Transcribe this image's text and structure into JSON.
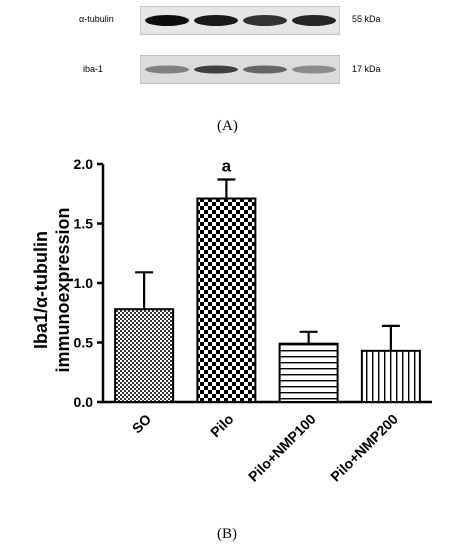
{
  "blot": {
    "rows": [
      {
        "protein": "α-tubulin",
        "size": "55 kDa",
        "intensities": [
          0.95,
          0.9,
          0.8,
          0.85
        ]
      },
      {
        "protein": "iba-1",
        "size": "17 kDa",
        "intensities": [
          0.5,
          0.75,
          0.6,
          0.45
        ]
      }
    ],
    "panel_label": "(A)"
  },
  "chart_data": {
    "type": "bar",
    "categories": [
      "SO",
      "Pilo",
      "Pilo+NMP100",
      "Pilo+NMP200"
    ],
    "values": [
      0.78,
      1.71,
      0.49,
      0.43
    ],
    "errors": [
      0.31,
      0.16,
      0.1,
      0.21
    ],
    "patterns": [
      "fine-checker",
      "coarse-checker",
      "horizontal-lines",
      "vertical-lines"
    ],
    "annotations": [
      {
        "category": "Pilo",
        "text": "a"
      }
    ],
    "ylabel_line1": "Iba1/α-tubulin",
    "ylabel_line2": "immunoexpression",
    "ylim": [
      0,
      2.0
    ],
    "yticks": [
      "0.0",
      "0.5",
      "1.0",
      "1.5",
      "2.0"
    ],
    "yticks_values": [
      0,
      0.5,
      1.0,
      1.5,
      2.0
    ],
    "panel_label": "(B)"
  }
}
